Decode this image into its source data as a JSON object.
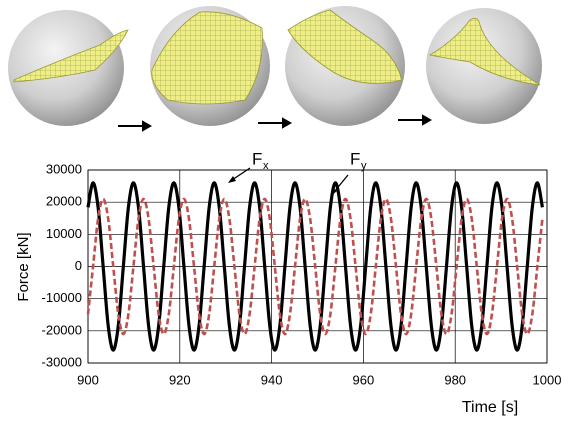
{
  "chart_data": {
    "type": "line",
    "y_label": "Force [kN]",
    "x_label": "Time [s]",
    "annotations": [
      {
        "base": "F",
        "sub": "x"
      },
      {
        "base": "F",
        "sub": "y"
      }
    ],
    "x": [
      900,
      901.1,
      902.2,
      903.3,
      904.4,
      905.5,
      906.6,
      907.7,
      908.8,
      909.9,
      911,
      912.1,
      913.2,
      914.3,
      915.4,
      916.5,
      917.6,
      918.7,
      919.8,
      920.9,
      922,
      923.1,
      924.2,
      925.3,
      926.4,
      927.5,
      928.6,
      929.7,
      930.8,
      931.9,
      933,
      934.1,
      935.2,
      936.3,
      937.4,
      938.5,
      939.6,
      940.7,
      941.8,
      942.9,
      944,
      945.1,
      946.2,
      947.3,
      948.4,
      949.5,
      950.6,
      951.7,
      952.8,
      953.9,
      955,
      956.1,
      957.2,
      958.3,
      959.4,
      960.5,
      961.6,
      962.7,
      963.8,
      964.9,
      966,
      967.1,
      968.2,
      969.3,
      970.4,
      971.5,
      972.6,
      973.7,
      974.8,
      975.9,
      977,
      978.1,
      979.2,
      980.3,
      981.4,
      982.5,
      983.6,
      984.7,
      985.8,
      986.9,
      988,
      989.1,
      990.2,
      991.3,
      992.4,
      993.5,
      994.6,
      995.7,
      996.8,
      997.9,
      999
    ],
    "series": [
      {
        "color": "#000000",
        "style": "solid",
        "values": [
          18385,
          26000,
          18385,
          0,
          -18385,
          -26000,
          -18385,
          0,
          18385,
          26000,
          18385,
          0,
          -18385,
          -26000,
          -18385,
          0,
          18385,
          26000,
          18385,
          0,
          -18385,
          -26000,
          -18385,
          0,
          18385,
          26000,
          18385,
          0,
          -18385,
          -26000,
          -18385,
          0,
          18385,
          26000,
          18385,
          0,
          -18385,
          -26000,
          -18385,
          0,
          18385,
          26000,
          18385,
          0,
          -18385,
          -26000,
          -18385,
          0,
          18385,
          26000,
          18385,
          0,
          -18385,
          -26000,
          -18385,
          0,
          18385,
          26000,
          18385,
          0,
          -18385,
          -26000,
          -18385,
          0,
          18385,
          26000,
          18385,
          0,
          -18385,
          -26000,
          -18385,
          0,
          18385,
          26000,
          18385,
          0,
          -18385,
          -26000,
          -18385,
          0,
          18385,
          26000,
          18385,
          0,
          -18385,
          -26000,
          -18385,
          0,
          18385,
          26000,
          18385
        ]
      },
      {
        "color": "#c0504d",
        "style": "dashed",
        "values": [
          -14849,
          0,
          14849,
          21000,
          14849,
          0,
          -14849,
          -21000,
          -14849,
          0,
          14849,
          21000,
          14849,
          0,
          -14849,
          -21000,
          -14849,
          0,
          14849,
          21000,
          14849,
          0,
          -14849,
          -21000,
          -14849,
          0,
          14849,
          21000,
          14849,
          0,
          -14849,
          -21000,
          -14849,
          0,
          14849,
          21000,
          14849,
          0,
          -14849,
          -21000,
          -14849,
          0,
          14849,
          21000,
          14849,
          0,
          -14849,
          -21000,
          -14849,
          0,
          14849,
          21000,
          14849,
          0,
          -14849,
          -21000,
          -14849,
          0,
          14849,
          21000,
          14849,
          0,
          -14849,
          -21000,
          -14849,
          0,
          14849,
          21000,
          14849,
          0,
          -14849,
          -21000,
          -14849,
          0,
          14849,
          21000,
          14849,
          0,
          -14849,
          -21000,
          -14849,
          0,
          14849,
          21000,
          14849,
          0,
          -14849,
          -21000,
          -14849,
          0,
          14849
        ]
      }
    ],
    "xlim": [
      900,
      1000
    ],
    "xticks": [
      900,
      920,
      940,
      960,
      980,
      1000
    ],
    "ylim": [
      -30000,
      30000
    ],
    "yticks": [
      -30000,
      -20000,
      -10000,
      0,
      10000,
      20000,
      30000
    ],
    "grid": true
  }
}
